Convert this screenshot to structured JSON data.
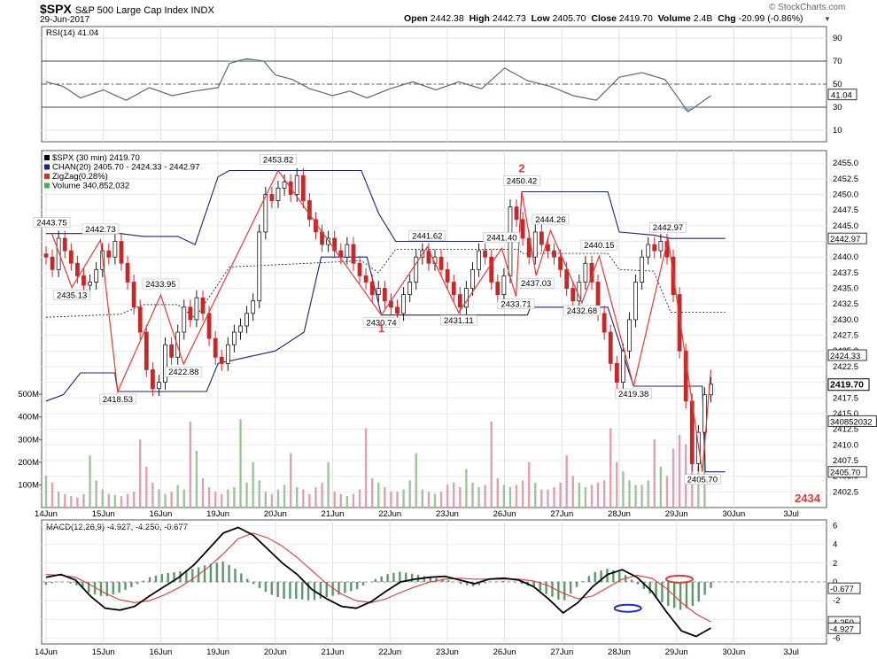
{
  "header": {
    "symbol": "$SPX",
    "name": "S&P 500 Large Cap Index",
    "exchange": "INDX",
    "date": "29-Jun-2017",
    "open_label": "Open",
    "open": "2442.38",
    "high_label": "High",
    "high": "2442.73",
    "low_label": "Low",
    "low": "2405.70",
    "close_label": "Close",
    "close": "2419.70",
    "volume_label": "Volume",
    "volume": "2.4B",
    "chg_label": "Chg",
    "chg": "-20.99 (-0.86%)",
    "watermark": "© StockCharts.com"
  },
  "chart_data": [
    {
      "type": "line",
      "title": "RSI(14) 41.04",
      "indicator": "RSI(14)",
      "value": 41.04,
      "ylim": [
        0,
        100
      ],
      "yticks": [
        10,
        30,
        50,
        70,
        90
      ],
      "levels": [
        30,
        50,
        70
      ],
      "last_label": "41.04",
      "x_days": [
        0,
        0.3,
        0.6,
        1.0,
        1.4,
        1.8,
        2.2,
        2.6,
        3.0,
        3.2,
        3.5,
        3.8,
        4.0,
        4.3,
        4.6,
        5.0,
        5.3,
        5.6,
        6.0,
        6.4,
        6.8,
        7.2,
        7.6,
        8.0,
        8.4,
        8.8,
        9.2,
        9.6,
        10.0,
        10.4,
        10.8,
        11.2,
        11.6
      ],
      "values": [
        52,
        48,
        38,
        45,
        36,
        47,
        40,
        44,
        47,
        68,
        72,
        70,
        58,
        54,
        46,
        40,
        44,
        38,
        46,
        52,
        45,
        52,
        46,
        64,
        53,
        48,
        40,
        36,
        56,
        60,
        54,
        26,
        40
      ]
    },
    {
      "type": "candlestick",
      "title": "$SPX (30 min) 2419.70",
      "ylim": [
        2400,
        2457
      ],
      "yticks": [
        2402.5,
        2405.0,
        2407.5,
        2410.0,
        2412.5,
        2415.0,
        2417.5,
        2420.0,
        2422.5,
        2425.0,
        2427.5,
        2430.0,
        2432.5,
        2435.0,
        2437.5,
        2440.0,
        2442.5,
        2445.0,
        2447.5,
        2450.0,
        2452.5,
        2455.0
      ],
      "ytick_labels": [
        "2402.5",
        "2405.0",
        "2407.5",
        "2410.0",
        "2412.5",
        "2415.0",
        "2417.5",
        "2420.0",
        "2422.5",
        "2425.0",
        "2427.5",
        "2430.0",
        "2432.5",
        "2435.0",
        "2437.5",
        "2440.0",
        "2442.5",
        "2445.0",
        "2447.5",
        "2450.0",
        "2452.5",
        "2455.0"
      ],
      "x_tick_labels": [
        "14Jun",
        "15Jun",
        "16Jun",
        "19Jun",
        "20Jun",
        "21Jun",
        "22Jun",
        "23Jun",
        "26Jun",
        "27Jun",
        "28Jun",
        "29Jun",
        "30Jun",
        "3Jul"
      ],
      "legend": [
        {
          "label": "$SPX (30 min) 2419.70",
          "color": "#000000"
        },
        {
          "label": "CHAN(20) 2405.70 - 2424.33 - 2442.97",
          "color": "#1a237e"
        },
        {
          "label": "ZigZag(0.28%)",
          "color": "#d32f2f"
        },
        {
          "label": "Volume 340,852,032",
          "color": "#4caf50"
        }
      ],
      "zigzag": [
        {
          "x": 0.1,
          "y": 2443.75
        },
        {
          "x": 0.45,
          "y": 2435.13
        },
        {
          "x": 0.95,
          "y": 2442.73
        },
        {
          "x": 1.25,
          "y": 2418.53
        },
        {
          "x": 2.0,
          "y": 2433.95
        },
        {
          "x": 2.4,
          "y": 2422.88
        },
        {
          "x": 4.05,
          "y": 2453.82
        },
        {
          "x": 5.85,
          "y": 2430.74
        },
        {
          "x": 6.65,
          "y": 2441.62
        },
        {
          "x": 7.2,
          "y": 2431.11
        },
        {
          "x": 7.95,
          "y": 2441.4
        },
        {
          "x": 8.2,
          "y": 2433.71
        },
        {
          "x": 8.3,
          "y": 2450.42
        },
        {
          "x": 8.55,
          "y": 2437.03
        },
        {
          "x": 8.8,
          "y": 2444.26
        },
        {
          "x": 9.35,
          "y": 2432.68
        },
        {
          "x": 9.65,
          "y": 2440.15
        },
        {
          "x": 10.25,
          "y": 2419.38
        },
        {
          "x": 10.85,
          "y": 2442.97
        },
        {
          "x": 11.45,
          "y": 2405.7
        },
        {
          "x": 11.6,
          "y": 2422.0
        }
      ],
      "annotations": [
        {
          "text": "2443.75",
          "x": 0.1,
          "y": 2443.75,
          "pos": "above"
        },
        {
          "text": "2435.13",
          "x": 0.45,
          "y": 2435.13,
          "pos": "below"
        },
        {
          "text": "2442.73",
          "x": 0.95,
          "y": 2442.73,
          "pos": "above"
        },
        {
          "text": "2418.53",
          "x": 1.25,
          "y": 2418.53,
          "pos": "below"
        },
        {
          "text": "2433.95",
          "x": 2.0,
          "y": 2433.95,
          "pos": "above"
        },
        {
          "text": "2422.88",
          "x": 2.4,
          "y": 2422.88,
          "pos": "below"
        },
        {
          "text": "2453.82",
          "x": 4.05,
          "y": 2453.82,
          "pos": "above"
        },
        {
          "text": "2430.74",
          "x": 5.85,
          "y": 2430.74,
          "pos": "below"
        },
        {
          "text": "2441.62",
          "x": 6.65,
          "y": 2441.62,
          "pos": "above"
        },
        {
          "text": "2431.11",
          "x": 7.2,
          "y": 2431.11,
          "pos": "below"
        },
        {
          "text": "2441.40",
          "x": 7.95,
          "y": 2441.4,
          "pos": "above"
        },
        {
          "text": "2433.71",
          "x": 8.2,
          "y": 2433.71,
          "pos": "below"
        },
        {
          "text": "2450.42",
          "x": 8.3,
          "y": 2450.42,
          "pos": "above"
        },
        {
          "text": "2437.03",
          "x": 8.55,
          "y": 2437.03,
          "pos": "below"
        },
        {
          "text": "2444.26",
          "x": 8.8,
          "y": 2444.26,
          "pos": "above"
        },
        {
          "text": "2432.68",
          "x": 9.35,
          "y": 2432.68,
          "pos": "below"
        },
        {
          "text": "2440.15",
          "x": 9.65,
          "y": 2440.15,
          "pos": "above"
        },
        {
          "text": "2419.38",
          "x": 10.25,
          "y": 2419.38,
          "pos": "below"
        },
        {
          "text": "2442.97",
          "x": 10.85,
          "y": 2442.97,
          "pos": "above"
        },
        {
          "text": "2405.70",
          "x": 11.45,
          "y": 2405.7,
          "pos": "below"
        }
      ],
      "wave_labels": [
        {
          "text": "1",
          "x": 5.85,
          "y": 2428.0
        },
        {
          "text": "2",
          "x": 8.3,
          "y": 2453.5
        }
      ],
      "corner_label": "2434",
      "channel_upper": [
        {
          "x": 0,
          "y": 2443.75
        },
        {
          "x": 1.3,
          "y": 2443.75
        },
        {
          "x": 1.7,
          "y": 2443.3
        },
        {
          "x": 2.3,
          "y": 2443.3
        },
        {
          "x": 2.6,
          "y": 2442.0
        },
        {
          "x": 3.0,
          "y": 2452.8
        },
        {
          "x": 3.2,
          "y": 2453.82
        },
        {
          "x": 5.5,
          "y": 2453.82
        },
        {
          "x": 5.8,
          "y": 2447.0
        },
        {
          "x": 6.1,
          "y": 2442.5
        },
        {
          "x": 8.25,
          "y": 2442.5
        },
        {
          "x": 8.3,
          "y": 2450.42
        },
        {
          "x": 9.8,
          "y": 2450.42
        },
        {
          "x": 10.0,
          "y": 2444.0
        },
        {
          "x": 10.6,
          "y": 2443.5
        },
        {
          "x": 10.9,
          "y": 2442.97
        },
        {
          "x": 11.85,
          "y": 2442.97
        }
      ],
      "channel_lower": [
        {
          "x": 0,
          "y": 2417.0
        },
        {
          "x": 0.3,
          "y": 2418.0
        },
        {
          "x": 0.6,
          "y": 2421.5
        },
        {
          "x": 1.2,
          "y": 2421.5
        },
        {
          "x": 1.25,
          "y": 2418.53
        },
        {
          "x": 2.8,
          "y": 2418.53
        },
        {
          "x": 3.0,
          "y": 2423.0
        },
        {
          "x": 4.0,
          "y": 2425.0
        },
        {
          "x": 4.5,
          "y": 2428.0
        },
        {
          "x": 4.8,
          "y": 2440.0
        },
        {
          "x": 5.6,
          "y": 2440.0
        },
        {
          "x": 5.85,
          "y": 2430.74
        },
        {
          "x": 8.4,
          "y": 2430.74
        },
        {
          "x": 8.45,
          "y": 2432.0
        },
        {
          "x": 9.8,
          "y": 2432.0
        },
        {
          "x": 10.25,
          "y": 2419.38
        },
        {
          "x": 11.45,
          "y": 2419.38
        },
        {
          "x": 11.5,
          "y": 2405.7
        },
        {
          "x": 11.85,
          "y": 2405.7
        }
      ],
      "price_labels": [
        {
          "text": "2442.97",
          "y": 2442.97,
          "style": "box"
        },
        {
          "text": "2424.33",
          "y": 2424.33,
          "style": "box"
        },
        {
          "text": "2419.70",
          "y": 2419.7,
          "style": "bold"
        },
        {
          "text": "2405.70",
          "y": 2405.7,
          "style": "box"
        },
        {
          "text": "340852032",
          "y": 2413.8,
          "style": "box"
        }
      ],
      "volume_ticks": [
        "100M",
        "200M",
        "300M",
        "400M",
        "500M"
      ],
      "volume_ylim": [
        0,
        520
      ],
      "close_series": [
        2440,
        2438,
        2443,
        2441,
        2439,
        2437,
        2435.5,
        2436,
        2438,
        2441,
        2440,
        2442.5,
        2439,
        2436,
        2432,
        2428,
        2422,
        2419,
        2420,
        2426,
        2424,
        2428,
        2432,
        2430,
        2433.5,
        2431,
        2427,
        2424,
        2423,
        2426,
        2428,
        2429,
        2431,
        2433,
        2444,
        2450,
        2449,
        2451,
        2452,
        2450,
        2453,
        2449,
        2446,
        2444,
        2442,
        2443,
        2441,
        2440,
        2442,
        2439,
        2437,
        2436,
        2434,
        2435,
        2433,
        2432,
        2431,
        2434,
        2436,
        2440,
        2441,
        2439,
        2440,
        2438,
        2436,
        2434,
        2432,
        2435,
        2438,
        2441,
        2440,
        2436,
        2434,
        2437,
        2448,
        2446,
        2443,
        2440,
        2444,
        2442,
        2441,
        2440,
        2438,
        2435,
        2433,
        2436,
        2439,
        2436,
        2431,
        2428,
        2423,
        2420,
        2425,
        2430,
        2436,
        2440,
        2442,
        2441,
        2442.5,
        2440,
        2434,
        2425,
        2417,
        2407,
        2412,
        2418,
        2419.7
      ],
      "volume_series": [
        140,
        110,
        70,
        60,
        50,
        45,
        60,
        230,
        120,
        80,
        60,
        55,
        50,
        60,
        70,
        300,
        180,
        110,
        80,
        60,
        70,
        100,
        80,
        380,
        250,
        130,
        90,
        70,
        60,
        80,
        90,
        390,
        110,
        200,
        120,
        70,
        60,
        80,
        100,
        240,
        90,
        80,
        60,
        90,
        110,
        200,
        70,
        60,
        50,
        60,
        80,
        350,
        130,
        110,
        90,
        70,
        70,
        80,
        120,
        240,
        80,
        70,
        60,
        70,
        100,
        110,
        90,
        170,
        110,
        90,
        100,
        380,
        130,
        100,
        90,
        100,
        120,
        200,
        110,
        80,
        80,
        90,
        110,
        230,
        140,
        110,
        90,
        100,
        110,
        120,
        350,
        200,
        160,
        120,
        100,
        100,
        120,
        300,
        180,
        140,
        260,
        320,
        280,
        250,
        180,
        330
      ]
    },
    {
      "type": "line",
      "title": "MACD(12,26,9) -4.927, -4.250, -0.677",
      "indicator": "MACD(12,26,9)",
      "values_header": [
        -4.927,
        -4.25,
        -0.677
      ],
      "ylim": [
        -6.6,
        6.6
      ],
      "yticks": [
        6,
        4,
        2,
        0,
        -2,
        -4,
        -6
      ],
      "price_labels": [
        {
          "text": "-0.677",
          "y": -0.677
        },
        {
          "text": "-4.250",
          "y": -4.25
        },
        {
          "text": "-4.927",
          "y": -4.927
        }
      ],
      "x_tick_labels": [
        "14Jun",
        "15Jun",
        "16Jun",
        "19Jun",
        "20Jun",
        "21Jun",
        "22Jun",
        "23Jun",
        "26Jun",
        "27Jun",
        "28Jun",
        "29Jun",
        "30Jun",
        "3Jul"
      ],
      "macd": [
        0.5,
        0.8,
        0.2,
        -1.5,
        -2.8,
        -3.0,
        -2.6,
        -1.5,
        -0.5,
        0.5,
        1.8,
        3.5,
        5.2,
        5.8,
        5.0,
        3.5,
        2.0,
        0.8,
        -0.8,
        -1.8,
        -2.6,
        -2.8,
        -2.1,
        -1.0,
        0.0,
        0.3,
        0.5,
        0.6,
        0.2,
        -0.2,
        0.3,
        0.4,
        0.2,
        -0.5,
        -1.8,
        -3.3,
        -2.2,
        -0.5,
        0.8,
        1.3,
        0.5,
        -1.0,
        -3.2,
        -5.2,
        -5.8,
        -4.9
      ],
      "signal": [
        0.8,
        0.7,
        0.5,
        -0.3,
        -1.2,
        -1.9,
        -2.2,
        -2.0,
        -1.4,
        -0.6,
        0.4,
        1.6,
        3.0,
        4.6,
        5.2,
        4.7,
        3.8,
        2.6,
        1.2,
        -0.2,
        -1.3,
        -2.0,
        -2.2,
        -1.8,
        -1.1,
        -0.5,
        0.0,
        0.3,
        0.4,
        0.3,
        0.3,
        0.3,
        0.3,
        0.1,
        -0.4,
        -1.2,
        -1.8,
        -1.5,
        -0.6,
        0.3,
        0.7,
        0.4,
        -0.7,
        -2.2,
        -3.4,
        -4.25
      ],
      "ellipses": [
        {
          "x": 10.15,
          "y": -2.8,
          "color": "#1f2ad4"
        },
        {
          "x": 11.05,
          "y": 0.3,
          "color": "#e53935"
        }
      ]
    }
  ]
}
